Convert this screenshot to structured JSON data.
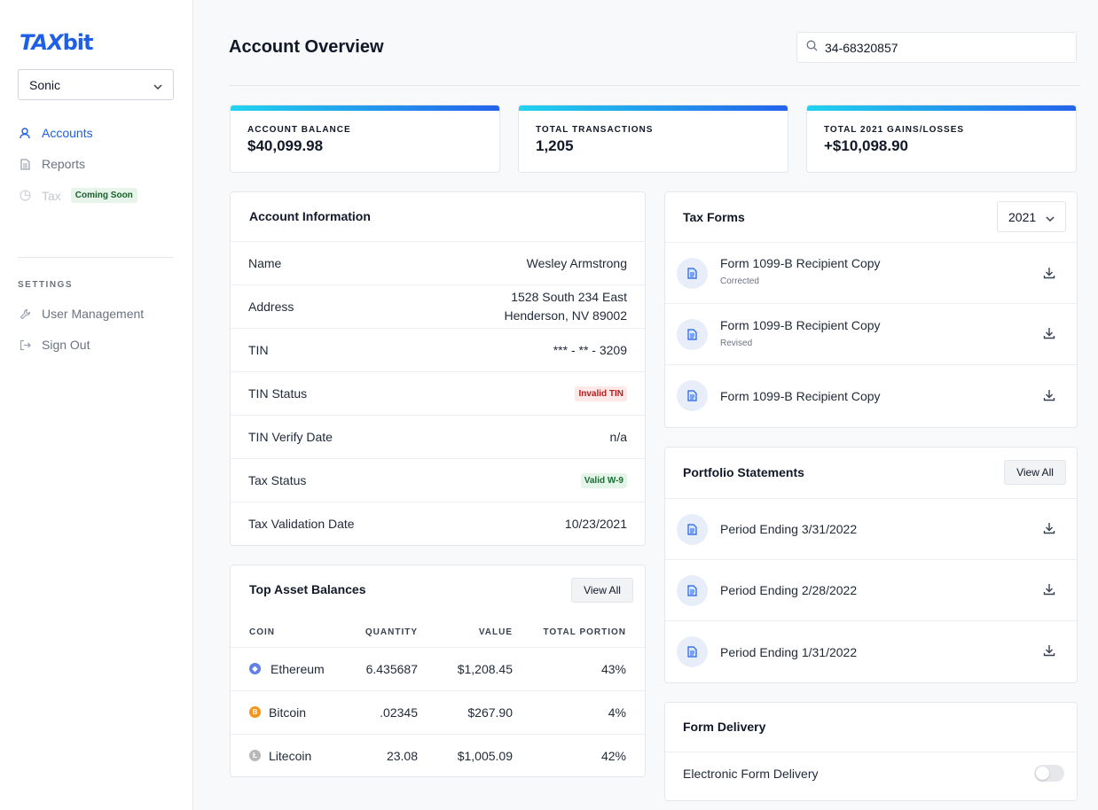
{
  "brand": {
    "logo_tax": "TAX",
    "logo_bit": "bit",
    "accent": "#1d5fe6"
  },
  "sidebar": {
    "account_selected": "Sonic",
    "nav": [
      {
        "label": "Accounts",
        "icon": "user-icon"
      },
      {
        "label": "Reports",
        "icon": "document-icon"
      },
      {
        "label": "Tax",
        "icon": "pie-chart-icon",
        "badge": "Coming Soon"
      }
    ],
    "settings_label": "SETTINGS",
    "settings": [
      {
        "label": "User Management",
        "icon": "wrench-icon"
      },
      {
        "label": "Sign Out",
        "icon": "sign-out-icon"
      }
    ]
  },
  "header": {
    "title": "Account Overview",
    "search_value": "34-68320857"
  },
  "stats": [
    {
      "label": "ACCOUNT BALANCE",
      "value": "$40,099.98"
    },
    {
      "label": "TOTAL TRANSACTIONS",
      "value": "1,205"
    },
    {
      "label": "TOTAL 2021 GAINS/LOSSES",
      "value": "+$10,098.90"
    }
  ],
  "account_info": {
    "title": "Account Information",
    "name_label": "Name",
    "name": "Wesley Armstrong",
    "address_label": "Address",
    "address_line1": "1528 South 234 East",
    "address_line2": "Henderson, NV 89002",
    "tin_label": "TIN",
    "tin": "*** - ** - 3209",
    "tin_status_label": "TIN Status",
    "tin_status": "Invalid TIN",
    "tin_verify_label": "TIN Verify Date",
    "tin_verify": "n/a",
    "tax_status_label": "Tax Status",
    "tax_status": "Valid W-9",
    "tax_validation_label": "Tax Validation Date",
    "tax_validation": "10/23/2021"
  },
  "assets": {
    "title": "Top Asset Balances",
    "view_all": "View All",
    "columns": [
      "COIN",
      "QUANTITY",
      "VALUE",
      "TOTAL PORTION"
    ],
    "rows": [
      {
        "coin": "Ethereum",
        "quantity": "6.435687",
        "value": "$1,208.45",
        "portion": "43%",
        "color": "#627eea",
        "glyph": "◆"
      },
      {
        "coin": "Bitcoin",
        "quantity": ".02345",
        "value": "$267.90",
        "portion": "4%",
        "color": "#f7931a",
        "glyph": "B"
      },
      {
        "coin": "Litecoin",
        "quantity": "23.08",
        "value": "$1,005.09",
        "portion": "42%",
        "color": "#b8b8b8",
        "glyph": "Ł"
      }
    ]
  },
  "tax_forms": {
    "title": "Tax Forms",
    "year": "2021",
    "items": [
      {
        "name": "Form 1099-B Recipient Copy",
        "sub": "Corrected"
      },
      {
        "name": "Form 1099-B Recipient Copy",
        "sub": "Revised"
      },
      {
        "name": "Form 1099-B Recipient Copy",
        "sub": ""
      }
    ]
  },
  "portfolio": {
    "title": "Portfolio Statements",
    "view_all": "View All",
    "items": [
      {
        "name": "Period Ending 3/31/2022"
      },
      {
        "name": "Period Ending 2/28/2022"
      },
      {
        "name": "Period Ending 1/31/2022"
      }
    ]
  },
  "form_delivery": {
    "title": "Form Delivery",
    "label": "Electronic Form Delivery",
    "enabled": false
  }
}
